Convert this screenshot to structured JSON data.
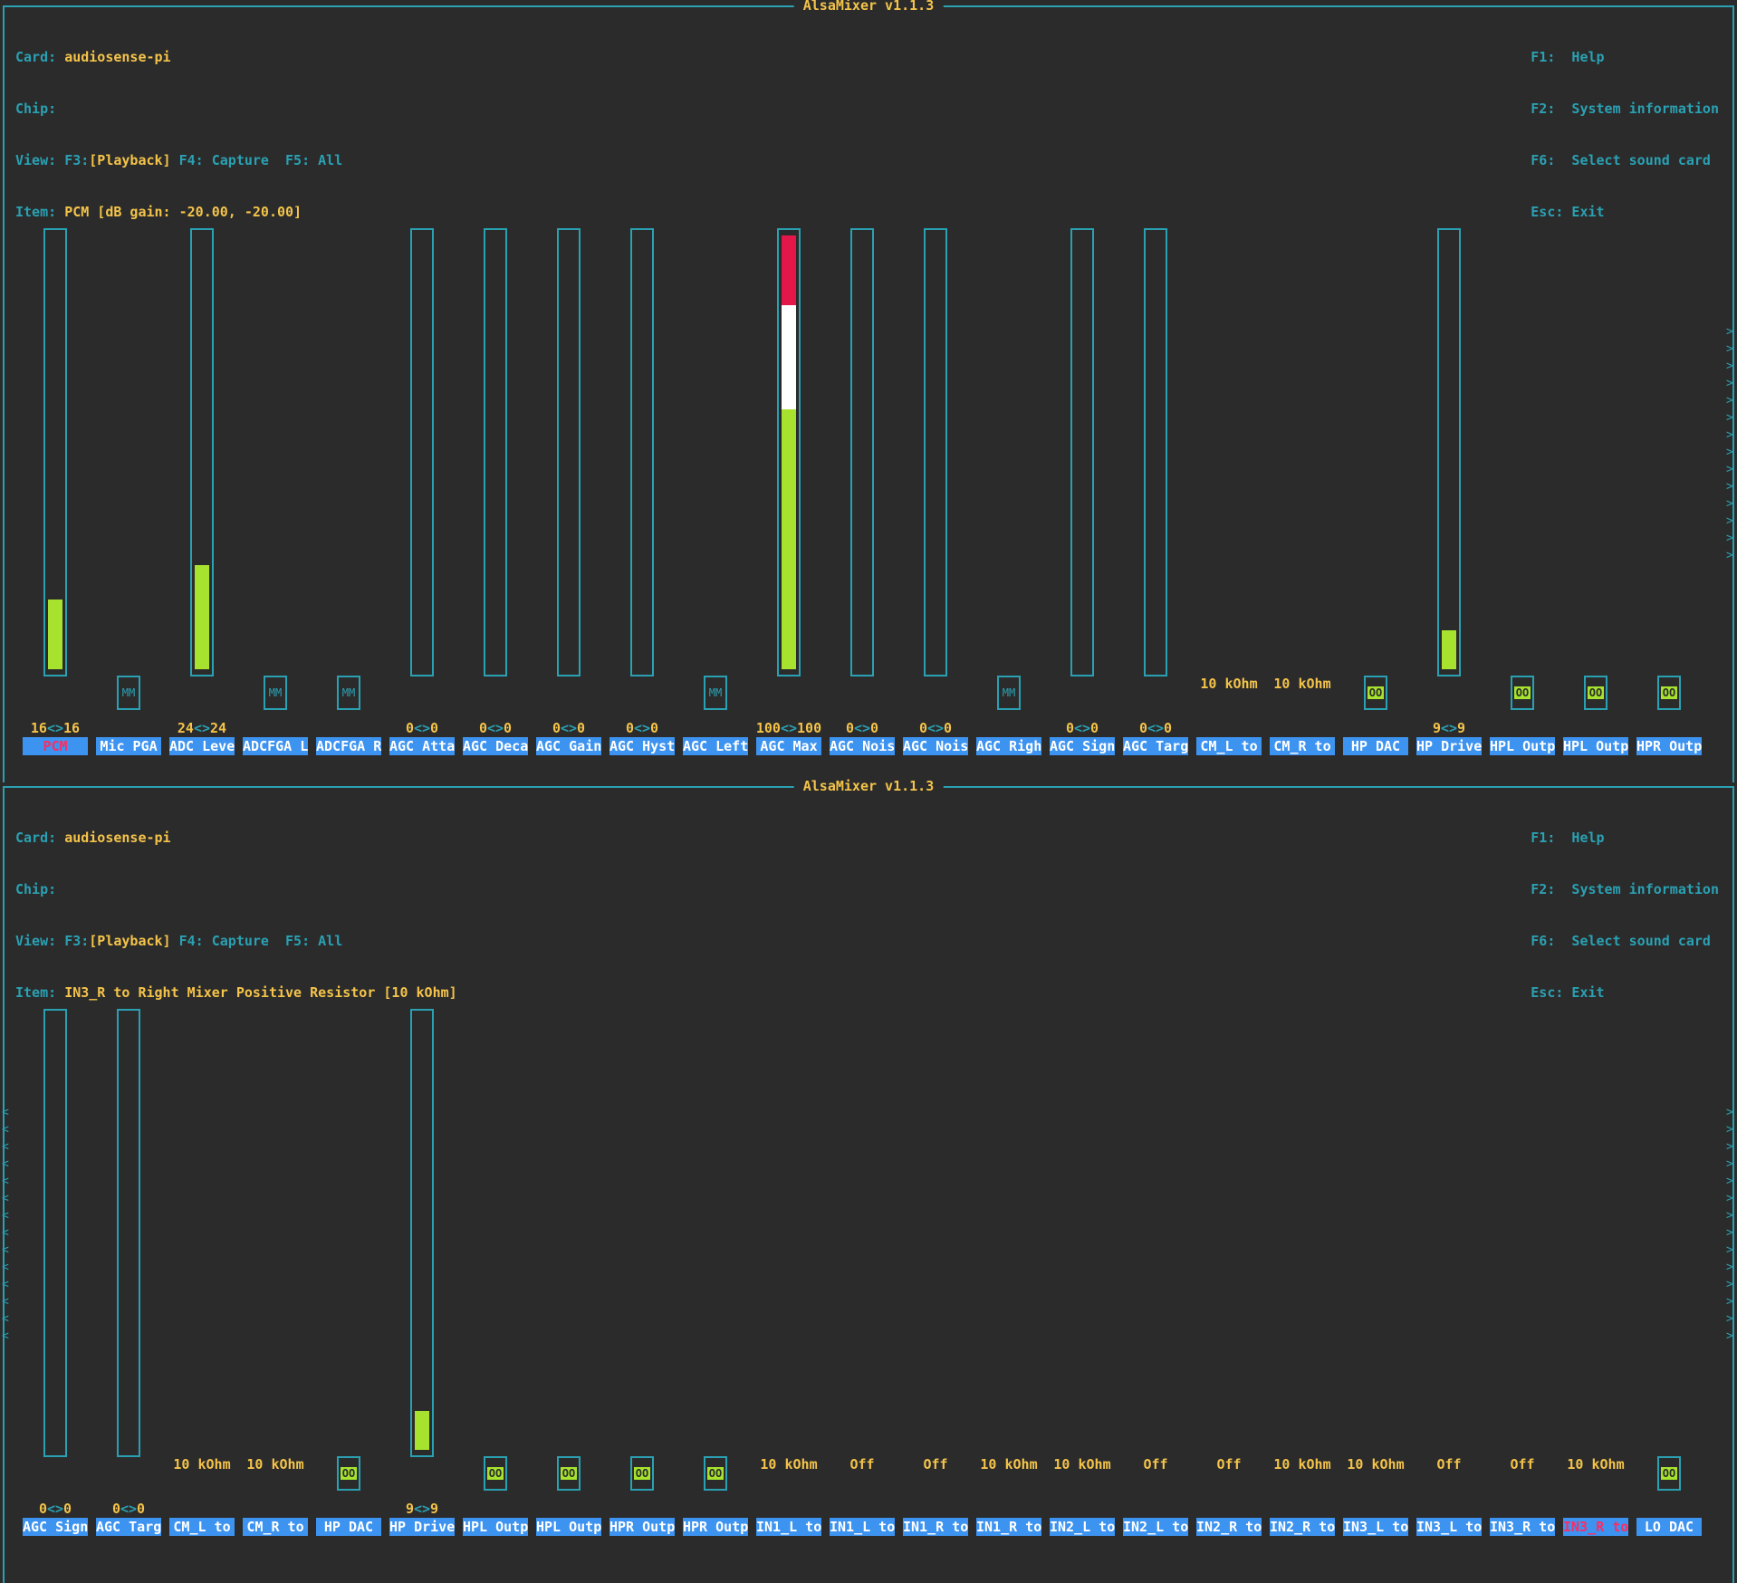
{
  "colors": {
    "background": "#2b2b2b",
    "frame": "#2aa1b3",
    "value_text": "#f4c34a",
    "label_bg": "#3d93f0",
    "label_text": "#ffffff",
    "selected_text": "#ff2b62",
    "bar_green": "#a6e22e",
    "bar_white": "#ffffff",
    "bar_red": "#e3174a"
  },
  "panes": [
    {
      "title": "AlsaMixer v1.1.3",
      "card_label": "Card:",
      "card_value": "audiosense-pi",
      "chip_label": "Chip:",
      "chip_value": "",
      "view_label": "View:",
      "view_f3": "F3:",
      "view_playback": "[Playback]",
      "view_f4": "F4: Capture",
      "view_f5": "F5: All",
      "item_label": "Item:",
      "item_value": "PCM [dB gain: -20.00, -20.00]",
      "keys": [
        "F1:  Help",
        "F2:  System information",
        "F6:  Select sound card",
        "Esc: Exit"
      ],
      "right_arrows": ">\n>\n>\n>\n>\n>\n>\n>\n>\n>\n>\n>\n>\n>",
      "left_arrows": "",
      "controls": [
        {
          "label": "PCM",
          "selected": true,
          "type": "bar",
          "level": 0.16,
          "value_l": "16",
          "value_r": "16"
        },
        {
          "label": "Mic PGA",
          "type": "mute",
          "mute": "MM"
        },
        {
          "label": "ADC Leve",
          "type": "bar",
          "level": 0.24,
          "value_l": "24",
          "value_r": "24"
        },
        {
          "label": "ADCFGA L",
          "type": "mute",
          "mute": "MM"
        },
        {
          "label": "ADCFGA R",
          "type": "mute",
          "mute": "MM"
        },
        {
          "label": "AGC Atta",
          "type": "bar",
          "level": 0,
          "value_l": "0",
          "value_r": "0"
        },
        {
          "label": "AGC Deca",
          "type": "bar",
          "level": 0,
          "value_l": "0",
          "value_r": "0"
        },
        {
          "label": "AGC Gain",
          "type": "bar",
          "level": 0,
          "value_l": "0",
          "value_r": "0"
        },
        {
          "label": "AGC Hyst",
          "type": "bar",
          "level": 0,
          "value_l": "0",
          "value_r": "0"
        },
        {
          "label": "AGC Left",
          "type": "mute",
          "mute": "MM"
        },
        {
          "label": "AGC Max",
          "type": "bar",
          "level": 1.0,
          "value_l": "100",
          "value_r": "100"
        },
        {
          "label": "AGC Nois",
          "type": "bar",
          "level": 0,
          "value_l": "0",
          "value_r": "0"
        },
        {
          "label": "AGC Nois",
          "type": "bar",
          "level": 0,
          "value_l": "0",
          "value_r": "0"
        },
        {
          "label": "AGC Righ",
          "type": "mute",
          "mute": "MM"
        },
        {
          "label": "AGC Sign",
          "type": "bar",
          "level": 0,
          "value_l": "0",
          "value_r": "0"
        },
        {
          "label": "AGC Targ",
          "type": "bar",
          "level": 0,
          "value_l": "0",
          "value_r": "0"
        },
        {
          "label": "CM_L to",
          "type": "enum",
          "enum": "10 kOhm"
        },
        {
          "label": "CM_R to",
          "type": "enum",
          "enum": "10 kOhm"
        },
        {
          "label": "HP DAC",
          "type": "mute",
          "mute": "OO",
          "on": true
        },
        {
          "label": "HP Drive",
          "type": "bar",
          "level": 0.09,
          "value_l": "9",
          "value_r": "9"
        },
        {
          "label": "HPL Outp",
          "type": "mute",
          "mute": "OO",
          "on": true
        },
        {
          "label": "HPL Outp",
          "type": "mute",
          "mute": "OO",
          "on": true
        },
        {
          "label": "HPR Outp",
          "type": "mute",
          "mute": "OO",
          "on": true
        }
      ]
    },
    {
      "title": "AlsaMixer v1.1.3",
      "card_label": "Card:",
      "card_value": "audiosense-pi",
      "chip_label": "Chip:",
      "chip_value": "",
      "view_label": "View:",
      "view_f3": "F3:",
      "view_playback": "[Playback]",
      "view_f4": "F4: Capture",
      "view_f5": "F5: All",
      "item_label": "Item:",
      "item_value": "IN3_R to Right Mixer Positive Resistor [10 kOhm]",
      "keys": [
        "F1:  Help",
        "F2:  System information",
        "F6:  Select sound card",
        "Esc: Exit"
      ],
      "right_arrows": ">\n>\n>\n>\n>\n>\n>\n>\n>\n>\n>\n>\n>\n>",
      "left_arrows": "<\n<\n<\n<\n<\n<\n<\n<\n<\n<\n<\n<\n<\n<",
      "controls": [
        {
          "label": "AGC Sign",
          "type": "bar",
          "level": 0,
          "value_l": "0",
          "value_r": "0"
        },
        {
          "label": "AGC Targ",
          "type": "bar",
          "level": 0,
          "value_l": "0",
          "value_r": "0"
        },
        {
          "label": "CM_L to",
          "type": "enum",
          "enum": "10 kOhm"
        },
        {
          "label": "CM_R to",
          "type": "enum",
          "enum": "10 kOhm"
        },
        {
          "label": "HP DAC",
          "type": "mute",
          "mute": "OO",
          "on": true
        },
        {
          "label": "HP Drive",
          "type": "bar",
          "level": 0.09,
          "value_l": "9",
          "value_r": "9"
        },
        {
          "label": "HPL Outp",
          "type": "mute",
          "mute": "OO",
          "on": true
        },
        {
          "label": "HPL Outp",
          "type": "mute",
          "mute": "OO",
          "on": true
        },
        {
          "label": "HPR Outp",
          "type": "mute",
          "mute": "OO",
          "on": true
        },
        {
          "label": "HPR Outp",
          "type": "mute",
          "mute": "OO",
          "on": true
        },
        {
          "label": "IN1_L to",
          "type": "enum",
          "enum": "10 kOhm"
        },
        {
          "label": "IN1_L to",
          "type": "enum",
          "enum": "Off"
        },
        {
          "label": "IN1_R to",
          "type": "enum",
          "enum": "Off"
        },
        {
          "label": "IN1_R to",
          "type": "enum",
          "enum": "10 kOhm"
        },
        {
          "label": "IN2_L to",
          "type": "enum",
          "enum": "10 kOhm"
        },
        {
          "label": "IN2_L to",
          "type": "enum",
          "enum": "Off"
        },
        {
          "label": "IN2_R to",
          "type": "enum",
          "enum": "Off"
        },
        {
          "label": "IN2_R to",
          "type": "enum",
          "enum": "10 kOhm"
        },
        {
          "label": "IN3_L to",
          "type": "enum",
          "enum": "10 kOhm"
        },
        {
          "label": "IN3_L to",
          "type": "enum",
          "enum": "Off"
        },
        {
          "label": "IN3_R to",
          "type": "enum",
          "enum": "Off"
        },
        {
          "label": "IN3_R to",
          "selected": true,
          "type": "enum",
          "enum": "10 kOhm"
        },
        {
          "label": "LO DAC",
          "type": "mute",
          "mute": "OO",
          "on": true
        }
      ]
    }
  ]
}
